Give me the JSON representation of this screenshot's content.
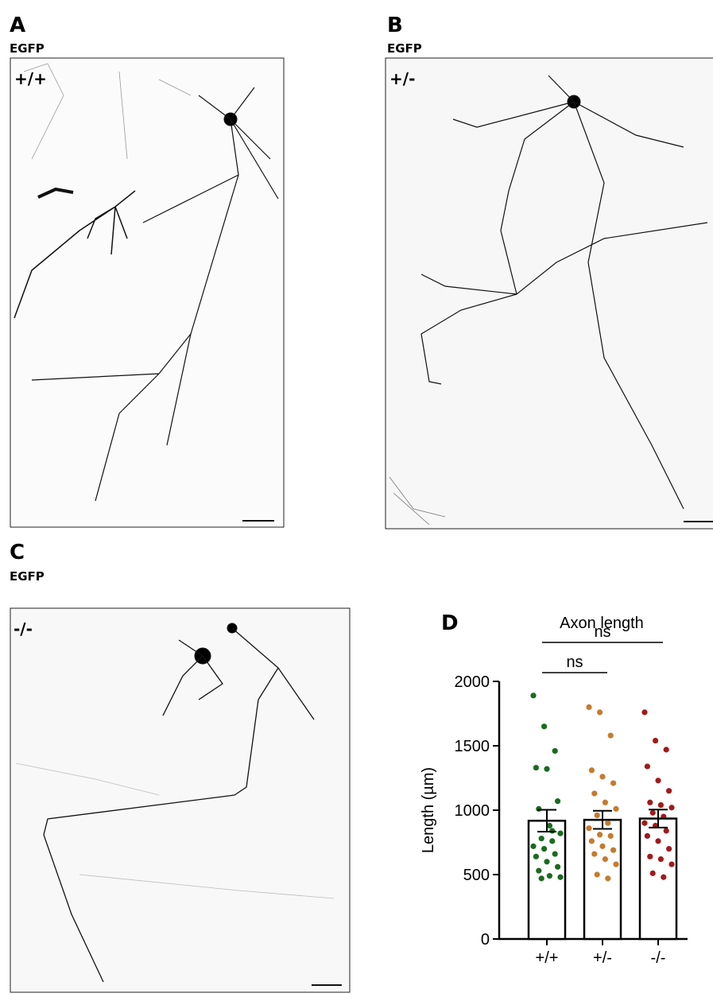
{
  "panels": [
    {
      "letter": "A",
      "label": "EGFP",
      "genotype": "+/+"
    },
    {
      "letter": "B",
      "label": "EGFP",
      "genotype": "+/-"
    },
    {
      "letter": "C",
      "label": "EGFP",
      "genotype": "-/-"
    }
  ],
  "chart_data": {
    "type": "bar",
    "letter": "D",
    "title": "Axon length",
    "y_label": "Length (µm)",
    "categories": [
      "+/+",
      "+/-",
      "-/-"
    ],
    "values": [
      918,
      925,
      935
    ],
    "errors": [
      85,
      70,
      70
    ],
    "colors": [
      "#1a6b1f",
      "#c77a2c",
      "#a11a1c"
    ],
    "points": [
      [
        1890,
        1650,
        1460,
        1330,
        1320,
        1070,
        1010,
        880,
        820,
        780,
        760,
        720,
        700,
        660,
        640,
        600,
        560,
        530,
        490,
        480,
        470,
        840
      ],
      [
        1800,
        1760,
        1580,
        1310,
        1260,
        1210,
        1130,
        1060,
        1010,
        960,
        900,
        860,
        810,
        800,
        760,
        720,
        690,
        660,
        620,
        580,
        500,
        470
      ],
      [
        1760,
        1540,
        1470,
        1340,
        1230,
        1150,
        1060,
        1040,
        1020,
        980,
        950,
        900,
        880,
        840,
        800,
        760,
        700,
        640,
        620,
        580,
        510,
        480
      ]
    ],
    "annotations": [
      "ns",
      "ns"
    ],
    "ylim": [
      0,
      2000
    ],
    "yticks": [
      0,
      500,
      1000,
      1500,
      2000
    ]
  }
}
